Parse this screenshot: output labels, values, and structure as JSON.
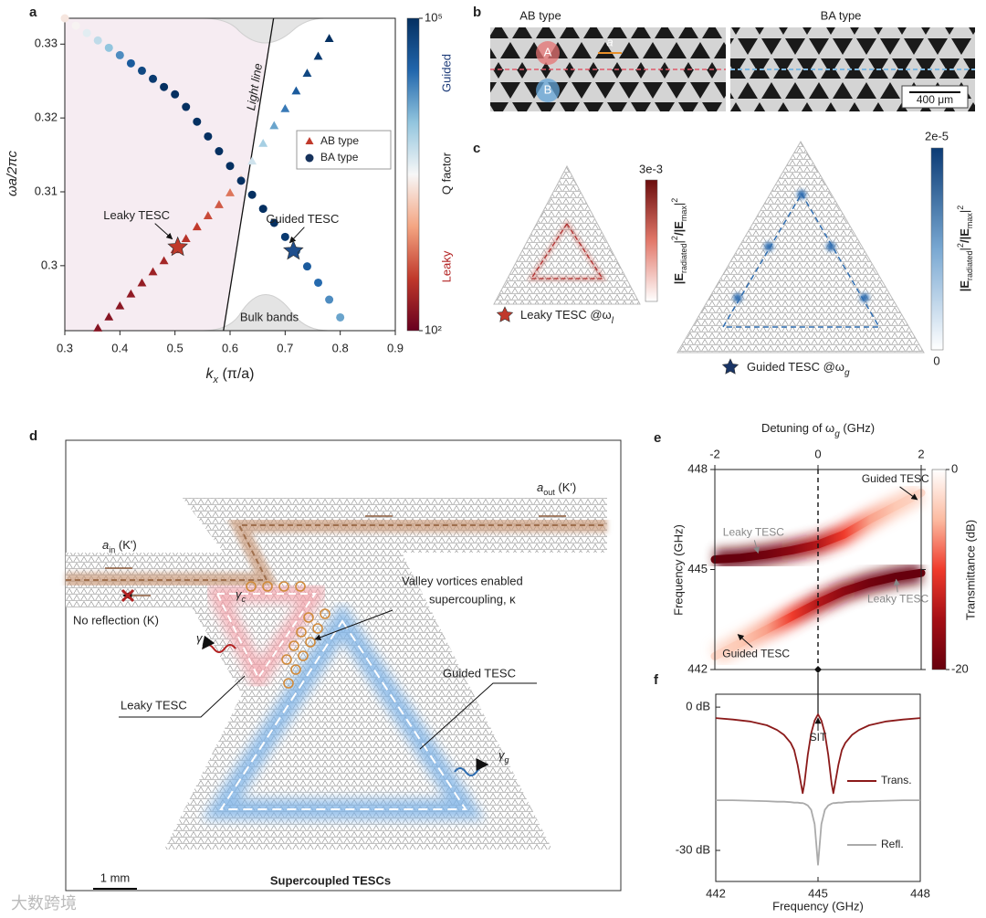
{
  "panel_labels": [
    "a",
    "b",
    "c",
    "d",
    "e",
    "f"
  ],
  "watermark": "大数跨境",
  "chart_data": [
    {
      "type": "scatter",
      "xlabel": {
        "main": "k",
        "sub": "x",
        "rest": " (π/a)"
      },
      "ylabel": "ωa/2πc",
      "xlim": [
        0.3,
        0.9
      ],
      "xticks": [
        0.3,
        0.4,
        0.5,
        0.6,
        0.7,
        0.8,
        0.9
      ],
      "ylim": [
        0.2912,
        0.3335
      ],
      "yticks": [
        0.3,
        0.31,
        0.32,
        0.33
      ],
      "series": [
        {
          "name": "AB type",
          "marker": "triangle",
          "color": "#c0392b",
          "x": [
            0.36,
            0.38,
            0.4,
            0.42,
            0.44,
            0.46,
            0.48,
            0.5,
            0.52,
            0.54,
            0.56,
            0.58,
            0.6,
            0.62,
            0.64,
            0.66,
            0.68,
            0.7,
            0.72,
            0.74,
            0.76,
            0.78
          ],
          "values": [
            0.2915,
            0.293,
            0.2945,
            0.2961,
            0.2976,
            0.2991,
            0.3006,
            0.3021,
            0.3036,
            0.3052,
            0.3067,
            0.3082,
            0.3098,
            0.3117,
            0.3141,
            0.3165,
            0.3189,
            0.3212,
            0.3236,
            0.326,
            0.3283,
            0.3307
          ],
          "q": [
            150,
            150,
            160,
            170,
            180,
            200,
            220,
            250,
            280,
            320,
            380,
            450,
            600,
            2000,
            5000,
            8000,
            15000,
            25000,
            40000,
            60000,
            80000,
            100000
          ]
        },
        {
          "name": "BA type",
          "marker": "circle",
          "color": "#16325c",
          "x": [
            0.3,
            0.32,
            0.34,
            0.36,
            0.38,
            0.4,
            0.42,
            0.44,
            0.46,
            0.48,
            0.5,
            0.52,
            0.54,
            0.56,
            0.58,
            0.6,
            0.62,
            0.64,
            0.66,
            0.68,
            0.7,
            0.72,
            0.74,
            0.76,
            0.78,
            0.8
          ],
          "values": [
            0.3335,
            0.3325,
            0.3315,
            0.3305,
            0.3295,
            0.3285,
            0.3274,
            0.3264,
            0.3253,
            0.3242,
            0.3232,
            0.3215,
            0.3195,
            0.3175,
            0.3155,
            0.3135,
            0.3115,
            0.3096,
            0.3077,
            0.3058,
            0.3039,
            0.302,
            0.2999,
            0.2977,
            0.2954,
            0.293
          ],
          "q": [
            2500,
            3000,
            4000,
            6000,
            10000,
            20000,
            40000,
            60000,
            80000,
            100000,
            100000,
            100000,
            100000,
            100000,
            100000,
            100000,
            100000,
            100000,
            100000,
            100000,
            80000,
            60000,
            40000,
            30000,
            20000,
            15000
          ]
        }
      ],
      "light_line": {
        "label": "Light line",
        "x": [
          0.588,
          0.679
        ],
        "y": [
          0.2912,
          0.3335
        ]
      },
      "bulk_bands_label": "Bulk bands",
      "annotations": [
        {
          "text": "Leaky TESC",
          "x": 0.505,
          "y": 0.3025,
          "color": "#c0392b"
        },
        {
          "text": "Guided TESC",
          "x": 0.715,
          "y": 0.302,
          "color": "#1f4e8c"
        }
      ],
      "colorbar": {
        "label": "Q factor",
        "upper_label": "Guided",
        "lower_label": "Leaky",
        "scale": "log",
        "clim": [
          100,
          100000
        ],
        "ticks": [
          {
            "value": 100,
            "label": "10²"
          },
          {
            "value": 100000,
            "label": "10⁵"
          }
        ],
        "colormap": [
          "#67001f",
          "#c0392b",
          "#f4a582",
          "#f7f7f7",
          "#92c5de",
          "#2166ac",
          "#053061"
        ]
      },
      "legend": "center right"
    },
    {
      "type": "heatmap",
      "x_title": {
        "main": "Detuning of ω",
        "sub": "g",
        "rest": " (GHz)"
      },
      "ylabel": "Frequency (GHz)",
      "xlim": [
        -2,
        2
      ],
      "xticks": [
        -2,
        0,
        2
      ],
      "ylim": [
        442,
        448
      ],
      "yticks": [
        442,
        445,
        448
      ],
      "detuning_line": 0,
      "branches": [
        {
          "x": [
            -2,
            -1.5,
            -1,
            -0.5,
            0,
            0.5,
            1,
            1.5,
            2
          ],
          "values": [
            445.3,
            445.35,
            445.45,
            445.58,
            445.75,
            446.05,
            446.5,
            446.9,
            447.3
          ],
          "depth": [
            -20,
            -20,
            -19,
            -17,
            -14,
            -10,
            -6,
            -4,
            -3
          ]
        },
        {
          "x": [
            -2,
            -1.5,
            -1,
            -0.5,
            0,
            0.5,
            1,
            1.5,
            2
          ],
          "values": [
            442.4,
            442.8,
            443.2,
            443.6,
            444.0,
            444.35,
            444.6,
            444.78,
            444.9
          ],
          "depth": [
            -3,
            -4,
            -6,
            -10,
            -14,
            -17,
            -19,
            -20,
            -20
          ]
        }
      ],
      "labels": [
        {
          "text": "Guided TESC",
          "x": 1.5,
          "y": 447.7
        },
        {
          "text": "Leaky TESC",
          "x": -1.25,
          "y": 446.1
        },
        {
          "text": "Leaky TESC",
          "x": 1.55,
          "y": 444.1
        },
        {
          "text": "Guided TESC",
          "x": -1.2,
          "y": 442.45
        }
      ],
      "colorbar": {
        "label": "Transmittance (dB)",
        "clim": [
          -20,
          0
        ],
        "ticks": [
          0,
          -20
        ],
        "colormap": [
          "#67000d",
          "#a50f15",
          "#ef3b2c",
          "#fcbba1",
          "#ffffff"
        ]
      }
    },
    {
      "type": "line",
      "xlabel": "Frequency (GHz)",
      "xlim": [
        442,
        448
      ],
      "xticks": [
        442,
        445,
        448
      ],
      "ylim": [
        -36.5,
        2.7
      ],
      "yticks": [
        {
          "value": 0,
          "label": "0 dB"
        },
        {
          "value": -30,
          "label": "-30 dB"
        }
      ],
      "x": [
        442,
        442.5,
        443,
        443.5,
        443.8,
        444,
        444.2,
        444.3,
        444.4,
        444.5,
        444.55,
        444.6,
        444.7,
        444.8,
        444.9,
        445,
        445.1,
        445.2,
        445.3,
        445.4,
        445.45,
        445.5,
        445.6,
        445.7,
        445.8,
        446,
        446.2,
        446.5,
        447,
        447.5,
        448
      ],
      "series": [
        {
          "name": "Trans.",
          "color": "#8b1a1a",
          "values": [
            -2.3,
            -2.6,
            -3.0,
            -3.8,
            -4.8,
            -5.8,
            -7.5,
            -9,
            -12,
            -16,
            -18,
            -16,
            -10,
            -5.5,
            -2.8,
            -1.5,
            -2.8,
            -5.5,
            -10,
            -16,
            -18,
            -16,
            -12,
            -9,
            -7.5,
            -5.8,
            -4.8,
            -3.8,
            -3.0,
            -2.6,
            -2.3
          ]
        },
        {
          "name": "Refl.",
          "color": "#aaaaaa",
          "values": [
            -19.5,
            -19.5,
            -19.6,
            -19.7,
            -19.8,
            -19.8,
            -19.9,
            -20,
            -20,
            -20.1,
            -20.1,
            -20.2,
            -20.6,
            -21.5,
            -24.5,
            -33,
            -24.5,
            -21.5,
            -20.6,
            -20.2,
            -20.1,
            -20.1,
            -20,
            -20,
            -19.9,
            -19.8,
            -19.8,
            -19.7,
            -19.6,
            -19.5,
            -19.5
          ]
        }
      ],
      "annotation": "SIT"
    }
  ],
  "panel_b": {
    "titles": [
      "AB type",
      "BA type"
    ],
    "site_labels": [
      "A",
      "B"
    ],
    "lattice_label": "a",
    "scale_bar": "400 μm"
  },
  "panel_c": {
    "leaky_max": "3e-3",
    "guided_max": "2e-5",
    "guided_min": "0",
    "leaky_caption": {
      "main": "Leaky TESC @ω",
      "sub": "l"
    },
    "guided_caption": {
      "main": "Guided TESC @ω",
      "sub": "g"
    },
    "colorbar_label": [
      "|E",
      "radiated",
      "|",
      "2",
      "/|E",
      "max",
      "|",
      "2"
    ]
  },
  "panel_d": {
    "a_out": {
      "main": "a",
      "sub": "out",
      "rest": " (K')"
    },
    "a_in": {
      "main": "a",
      "sub": "in",
      "rest": " (K')"
    },
    "no_reflection": "No reflection (K)",
    "vortices": [
      "Valley vortices enabled",
      "supercoupling, κ"
    ],
    "guided": "Guided TESC",
    "leaky": "Leaky TESC",
    "gamma_c": {
      "main": "γ",
      "sub": "c"
    },
    "gamma_l": {
      "main": "γ",
      "sub": "l"
    },
    "gamma_g": {
      "main": "γ",
      "sub": "g"
    },
    "scale_bar": "1 mm",
    "caption": "Supercoupled TESCs"
  }
}
